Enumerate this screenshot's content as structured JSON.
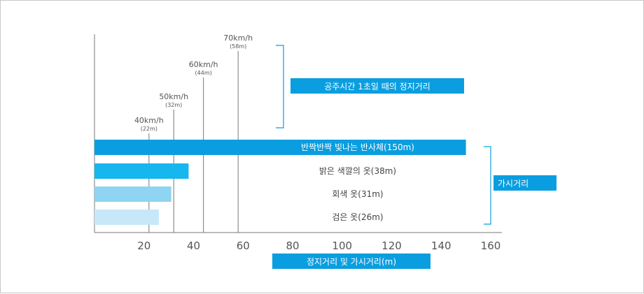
{
  "chart_data": {
    "type": "bar",
    "title": "",
    "xlabel": "정지거리 및 가시거리(m)",
    "ylabel": "",
    "xlim": [
      0,
      160
    ],
    "x_ticks": [
      "20",
      "40",
      "60",
      "80",
      "100",
      "120",
      "140",
      "160"
    ],
    "grid": false,
    "bars": [
      {
        "name": "반짝반짝 빛나는 반사체(150m)",
        "value": 150,
        "color": "#0a9ee0"
      },
      {
        "name": "밝은 색깔의 옷(38m)",
        "value": 38,
        "color": "#16b6ee"
      },
      {
        "name": "회색 옷(31m)",
        "value": 31,
        "color": "#8fd4f2"
      },
      {
        "name": "검은 옷(26m)",
        "value": 26,
        "color": "#c7e8f8"
      }
    ],
    "reference_lines": [
      {
        "speed": "40km/h",
        "distance_label": "(22m)",
        "x": 22
      },
      {
        "speed": "50km/h",
        "distance_label": "(32m)",
        "x": 32
      },
      {
        "speed": "60km/h",
        "distance_label": "(44m)",
        "x": 44
      },
      {
        "speed": "70km/h",
        "distance_label": "(58m)",
        "x": 58
      }
    ],
    "annotations": {
      "reaction_label": "공주시간 1초일 때의 정지거리",
      "visibility_label": "가시거리"
    },
    "colors": {
      "accent": "#0a9ee0",
      "axis": "#777777",
      "line": "#777777",
      "tick_text": "#555555"
    }
  }
}
